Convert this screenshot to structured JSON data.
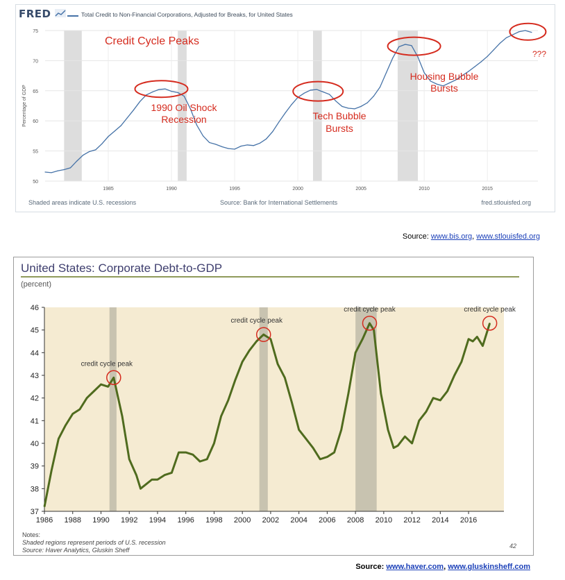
{
  "fred": {
    "logo": "FRED",
    "title": "Total Credit to Non-Financial Corporations, Adjusted for Breaks, for United States",
    "footer_left": "Shaded areas indicate U.S. recessions",
    "footer_center": "Source: Bank for International Settlements",
    "footer_right": "fred.stlouisfed.org"
  },
  "source_line_1": {
    "prefix": "Source: ",
    "link1": "www.bis.org",
    "sep": ", ",
    "link2": "www.stlouisfed.org"
  },
  "haver": {
    "title": "United States: Corporate Debt-to-GDP",
    "unit": "(percent)",
    "notes_heading": "Notes:",
    "notes_line1": "Shaded regions represent periods of U.S. recession",
    "notes_line2": "Source: Haver Analytics, Gluskin Sheff",
    "page_number": "42"
  },
  "source_line_2": {
    "prefix": "Source: ",
    "link1": "www.haver.com",
    "sep": ", ",
    "link2": "www.gluskinsheff.com"
  },
  "colors": {
    "fred_line": "#4572a7",
    "haver_line": "#4f6b1e",
    "haver_bg": "#f5ebd2",
    "recession_fred": "#dddddd",
    "recession_haver": "#c8c3b0",
    "annotation_red": "#d52b1e"
  },
  "chart_data": [
    {
      "type": "line",
      "ylabel": "Percentage of GDP",
      "xlim": [
        1980,
        2019
      ],
      "ylim": [
        50,
        75
      ],
      "y_ticks": [
        50,
        55,
        60,
        65,
        70,
        75
      ],
      "x_ticks": [
        1985,
        1990,
        1995,
        2000,
        2005,
        2010,
        2015
      ],
      "grid": true,
      "recessions": [
        [
          1981.5,
          1982.9
        ],
        [
          1990.5,
          1991.2
        ],
        [
          2001.2,
          2001.9
        ],
        [
          2007.9,
          2009.5
        ]
      ],
      "annotations": [
        "Credit Cycle Peaks",
        "1990 Oil Shock",
        "Recession",
        "Tech Bubble",
        "Bursts",
        "Housing Bubble",
        "Bursts",
        "???"
      ],
      "series": [
        {
          "x": [
            1980,
            1980.5,
            1981,
            1981.5,
            1982,
            1982.5,
            1983,
            1983.5,
            1984,
            1984.5,
            1985,
            1985.5,
            1986,
            1986.5,
            1987,
            1987.5,
            1988,
            1988.5,
            1989,
            1989.5,
            1990,
            1990.5,
            1991,
            1991.5,
            1992,
            1992.5,
            1993,
            1993.5,
            1994,
            1994.5,
            1995,
            1995.5,
            1996,
            1996.5,
            1997,
            1997.5,
            1998,
            1998.5,
            1999,
            1999.5,
            2000,
            2000.5,
            2001,
            2001.5,
            2002,
            2002.5,
            2003,
            2003.5,
            2004,
            2004.5,
            2005,
            2005.5,
            2006,
            2006.5,
            2007,
            2007.5,
            2008,
            2008.5,
            2009,
            2009.5,
            2010,
            2010.5,
            2011,
            2011.5,
            2012,
            2012.5,
            2013,
            2013.5,
            2014,
            2014.5,
            2015,
            2015.5,
            2016,
            2016.5,
            2017,
            2017.5,
            2018,
            2018.5
          ],
          "values": [
            51.5,
            51.4,
            51.7,
            51.9,
            52.2,
            53.3,
            54.3,
            54.9,
            55.2,
            56.2,
            57.4,
            58.3,
            59.2,
            60.5,
            61.8,
            63.2,
            64.3,
            64.8,
            65.2,
            65.3,
            64.9,
            64.7,
            64.1,
            62.0,
            59.3,
            57.5,
            56.4,
            56.1,
            55.7,
            55.4,
            55.3,
            55.8,
            56.0,
            55.9,
            56.3,
            57.0,
            58.2,
            59.8,
            61.3,
            62.7,
            63.9,
            64.6,
            65.1,
            65.2,
            64.8,
            64.4,
            63.3,
            62.4,
            62.1,
            62.0,
            62.4,
            63.0,
            64.1,
            65.6,
            68.0,
            70.4,
            72.3,
            72.7,
            72.5,
            70.6,
            68.0,
            66.6,
            66.1,
            65.8,
            66.3,
            66.8,
            67.5,
            68.2,
            69.0,
            69.8,
            70.7,
            71.8,
            72.9,
            73.8,
            74.3,
            74.8,
            75.0,
            74.7
          ]
        }
      ]
    },
    {
      "type": "line",
      "title": "United States: Corporate Debt-to-GDP",
      "ylabel": "(percent)",
      "xlim": [
        1986,
        2018.5
      ],
      "ylim": [
        37,
        46
      ],
      "y_ticks": [
        37,
        38,
        39,
        40,
        41,
        42,
        43,
        44,
        45,
        46
      ],
      "x_ticks": [
        1986,
        1988,
        1990,
        1992,
        1994,
        1996,
        1998,
        2000,
        2002,
        2004,
        2006,
        2008,
        2010,
        2012,
        2014,
        2016
      ],
      "recessions": [
        [
          1990.6,
          1991.1
        ],
        [
          2001.2,
          2001.8
        ],
        [
          2008.0,
          2009.5
        ]
      ],
      "annotations": [
        {
          "text": "credit cycle peak",
          "x": 1990.9,
          "y": 42.9
        },
        {
          "text": "credit cycle peak",
          "x": 2001.5,
          "y": 44.8
        },
        {
          "text": "credit cycle peak",
          "x": 2009.0,
          "y": 45.3
        },
        {
          "text": "credit cycle peak",
          "x": 2017.5,
          "y": 45.3
        }
      ],
      "series": [
        {
          "x": [
            1986.0,
            1986.5,
            1987.0,
            1987.5,
            1988.0,
            1988.5,
            1989.0,
            1989.5,
            1990.0,
            1990.5,
            1990.9,
            1991.5,
            1992.0,
            1992.5,
            1992.8,
            1993.2,
            1993.6,
            1994.0,
            1994.5,
            1995.0,
            1995.5,
            1996.0,
            1996.5,
            1997.0,
            1997.5,
            1998.0,
            1998.5,
            1999.0,
            1999.5,
            2000.0,
            2000.5,
            2001.0,
            2001.5,
            2002.0,
            2002.5,
            2003.0,
            2003.5,
            2004.0,
            2004.5,
            2005.0,
            2005.5,
            2006.0,
            2006.5,
            2007.0,
            2007.5,
            2008.0,
            2008.5,
            2009.0,
            2009.3,
            2009.8,
            2010.3,
            2010.7,
            2011.0,
            2011.5,
            2012.0,
            2012.5,
            2013.0,
            2013.5,
            2014.0,
            2014.5,
            2015.0,
            2015.5,
            2016.0,
            2016.3,
            2016.6,
            2017.0,
            2017.5
          ],
          "values": [
            37.2,
            38.8,
            40.2,
            40.8,
            41.3,
            41.5,
            42.0,
            42.3,
            42.6,
            42.5,
            42.9,
            41.2,
            39.3,
            38.6,
            38.0,
            38.2,
            38.4,
            38.4,
            38.6,
            38.7,
            39.6,
            39.6,
            39.5,
            39.2,
            39.3,
            40.0,
            41.2,
            41.9,
            42.8,
            43.6,
            44.1,
            44.5,
            44.8,
            44.6,
            43.5,
            42.9,
            41.8,
            40.6,
            40.2,
            39.8,
            39.3,
            39.4,
            39.6,
            40.6,
            42.2,
            44.0,
            44.6,
            45.3,
            45.0,
            42.2,
            40.6,
            39.8,
            39.9,
            40.3,
            40.0,
            41.0,
            41.4,
            42.0,
            41.9,
            42.3,
            43.0,
            43.6,
            44.6,
            44.5,
            44.7,
            44.3,
            45.3
          ]
        }
      ]
    }
  ]
}
